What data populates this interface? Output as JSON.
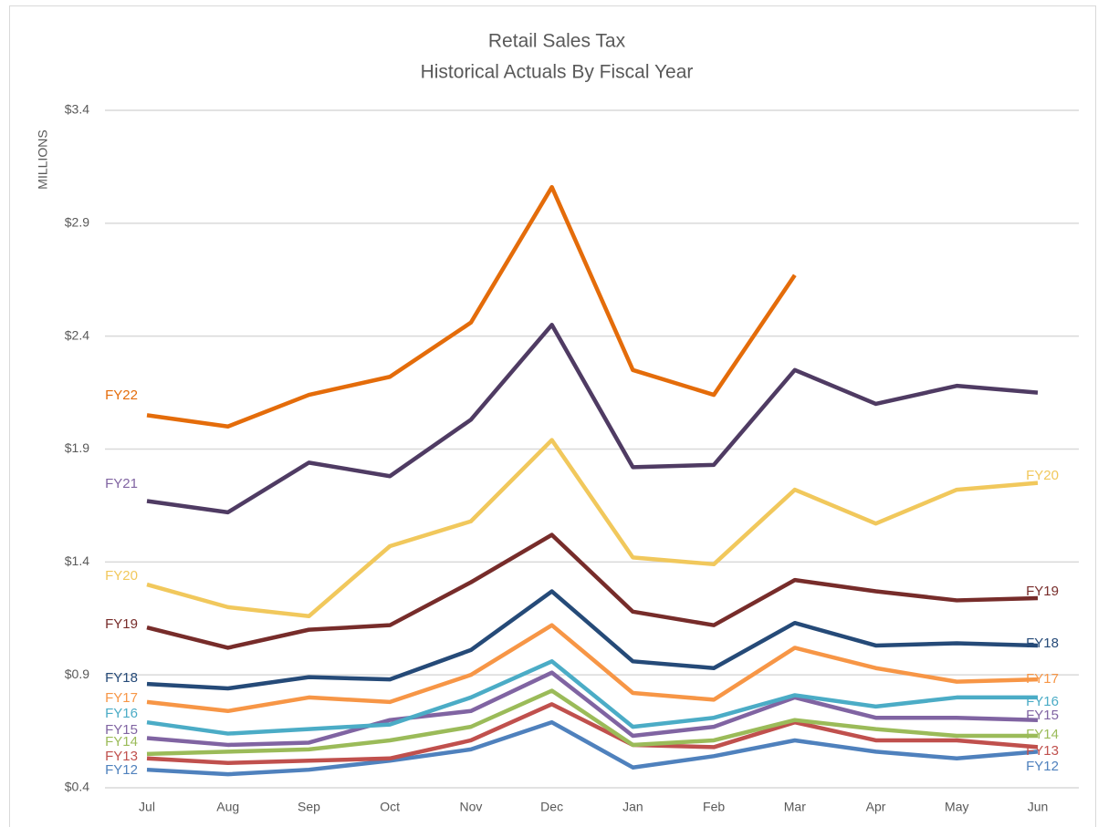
{
  "chart_data": {
    "type": "line",
    "title": "Retail Sales Tax",
    "subtitle": "Historical Actuals By Fiscal Year",
    "y_label": "MILLIONS",
    "categories": [
      "Jul",
      "Aug",
      "Sep",
      "Oct",
      "Nov",
      "Dec",
      "Jan",
      "Feb",
      "Mar",
      "Apr",
      "May",
      "Jun"
    ],
    "ylim": [
      0.4,
      3.4
    ],
    "yticks": [
      {
        "value": 0.4,
        "label": "$0.4"
      },
      {
        "value": 0.9,
        "label": "$0.9"
      },
      {
        "value": 1.4,
        "label": "$1.4"
      },
      {
        "value": 1.9,
        "label": "$1.9"
      },
      {
        "value": 2.4,
        "label": "$2.4"
      },
      {
        "value": 2.9,
        "label": "$2.9"
      },
      {
        "value": 3.4,
        "label": "$3.4"
      }
    ],
    "grid": true,
    "series": [
      {
        "name": "FY22",
        "color": "#e46c0a",
        "values": [
          2.05,
          2.0,
          2.14,
          2.22,
          2.46,
          3.06,
          2.25,
          2.14,
          2.67,
          null,
          null,
          null
        ]
      },
      {
        "name": "FY21",
        "color": "#4f3b63",
        "values": [
          1.67,
          1.62,
          1.84,
          1.78,
          2.03,
          2.45,
          1.82,
          1.83,
          2.25,
          2.1,
          2.18,
          2.15
        ]
      },
      {
        "name": "FY20",
        "color": "#f1c85c",
        "values": [
          1.3,
          1.2,
          1.16,
          1.47,
          1.58,
          1.94,
          1.42,
          1.39,
          1.72,
          1.57,
          1.72,
          1.75
        ]
      },
      {
        "name": "FY19",
        "color": "#772c2a",
        "values": [
          1.11,
          1.02,
          1.1,
          1.12,
          1.31,
          1.52,
          1.18,
          1.12,
          1.32,
          1.27,
          1.23,
          1.24
        ]
      },
      {
        "name": "FY18",
        "color": "#254a78",
        "values": [
          0.86,
          0.84,
          0.89,
          0.88,
          1.01,
          1.27,
          0.96,
          0.93,
          1.13,
          1.03,
          1.04,
          1.03
        ]
      },
      {
        "name": "FY17",
        "color": "#f79646",
        "values": [
          0.78,
          0.74,
          0.8,
          0.78,
          0.9,
          1.12,
          0.82,
          0.79,
          1.02,
          0.93,
          0.87,
          0.88
        ]
      },
      {
        "name": "FY16",
        "color": "#4bacc6",
        "values": [
          0.69,
          0.64,
          0.66,
          0.68,
          0.8,
          0.96,
          0.67,
          0.71,
          0.81,
          0.76,
          0.8,
          0.8
        ]
      },
      {
        "name": "FY15",
        "color": "#8064a2",
        "values": [
          0.62,
          0.59,
          0.6,
          0.7,
          0.74,
          0.91,
          0.63,
          0.67,
          0.8,
          0.71,
          0.71,
          0.7
        ]
      },
      {
        "name": "FY14",
        "color": "#9bbb59",
        "values": [
          0.55,
          0.56,
          0.57,
          0.61,
          0.67,
          0.83,
          0.59,
          0.61,
          0.7,
          0.66,
          0.63,
          0.63
        ]
      },
      {
        "name": "FY13",
        "color": "#c0504d",
        "values": [
          0.53,
          0.51,
          0.52,
          0.53,
          0.61,
          0.77,
          0.59,
          0.58,
          0.69,
          0.61,
          0.61,
          0.58
        ]
      },
      {
        "name": "FY12",
        "color": "#4f81bd",
        "values": [
          0.48,
          0.46,
          0.48,
          0.52,
          0.57,
          0.69,
          0.49,
          0.54,
          0.61,
          0.56,
          0.53,
          0.56
        ]
      }
    ]
  }
}
